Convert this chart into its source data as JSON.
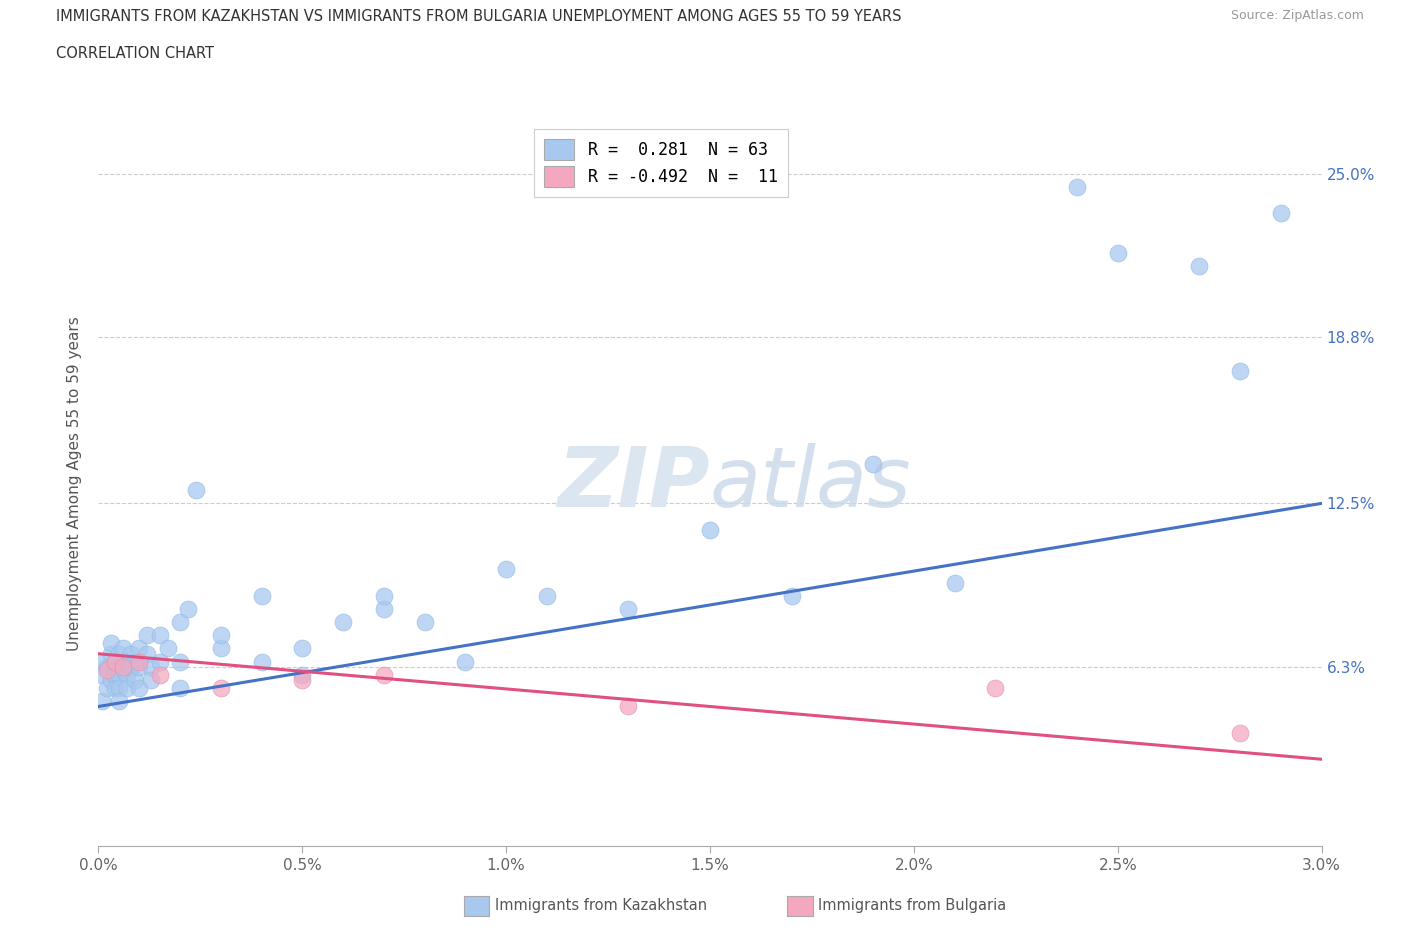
{
  "title_line1": "IMMIGRANTS FROM KAZAKHSTAN VS IMMIGRANTS FROM BULGARIA UNEMPLOYMENT AMONG AGES 55 TO 59 YEARS",
  "title_line2": "CORRELATION CHART",
  "source_text": "Source: ZipAtlas.com",
  "ylabel": "Unemployment Among Ages 55 to 59 years",
  "xlim": [
    0.0,
    0.03
  ],
  "ylim": [
    -0.005,
    0.27
  ],
  "xtick_labels": [
    "0.0%",
    "0.5%",
    "1.0%",
    "1.5%",
    "2.0%",
    "2.5%",
    "3.0%"
  ],
  "xtick_vals": [
    0.0,
    0.005,
    0.01,
    0.015,
    0.02,
    0.025,
    0.03
  ],
  "ytick_labels": [
    "6.3%",
    "12.5%",
    "18.8%",
    "25.0%"
  ],
  "ytick_vals": [
    0.063,
    0.125,
    0.188,
    0.25
  ],
  "legend_kaz_r": "0.281",
  "legend_kaz_n": "63",
  "legend_bul_r": "-0.492",
  "legend_bul_n": "11",
  "kaz_color": "#a8c8f0",
  "bul_color": "#f4a8c0",
  "kaz_line_color": "#4472c4",
  "bul_line_color": "#e05080",
  "watermark_color": "#dce6f0",
  "kaz_scatter_x": [
    0.0001,
    0.0001,
    0.0001,
    0.0002,
    0.0002,
    0.0003,
    0.0003,
    0.0003,
    0.0004,
    0.0004,
    0.0004,
    0.0005,
    0.0005,
    0.0005,
    0.0005,
    0.0006,
    0.0006,
    0.0006,
    0.0007,
    0.0007,
    0.0007,
    0.0008,
    0.0008,
    0.0009,
    0.0009,
    0.001,
    0.001,
    0.001,
    0.0012,
    0.0012,
    0.0013,
    0.0013,
    0.0015,
    0.0015,
    0.0017,
    0.002,
    0.002,
    0.002,
    0.0022,
    0.0024,
    0.003,
    0.003,
    0.004,
    0.004,
    0.005,
    0.005,
    0.006,
    0.007,
    0.007,
    0.008,
    0.009,
    0.01,
    0.011,
    0.013,
    0.015,
    0.017,
    0.019,
    0.021,
    0.024,
    0.025,
    0.027,
    0.028,
    0.029
  ],
  "kaz_scatter_y": [
    0.05,
    0.06,
    0.065,
    0.055,
    0.063,
    0.058,
    0.068,
    0.072,
    0.06,
    0.065,
    0.055,
    0.06,
    0.068,
    0.055,
    0.05,
    0.062,
    0.065,
    0.07,
    0.06,
    0.065,
    0.055,
    0.063,
    0.068,
    0.058,
    0.065,
    0.063,
    0.07,
    0.055,
    0.068,
    0.075,
    0.063,
    0.058,
    0.065,
    0.075,
    0.07,
    0.065,
    0.08,
    0.055,
    0.085,
    0.13,
    0.07,
    0.075,
    0.09,
    0.065,
    0.07,
    0.06,
    0.08,
    0.085,
    0.09,
    0.08,
    0.065,
    0.1,
    0.09,
    0.085,
    0.115,
    0.09,
    0.14,
    0.095,
    0.245,
    0.22,
    0.215,
    0.175,
    0.235
  ],
  "bul_scatter_x": [
    0.0002,
    0.0004,
    0.0006,
    0.001,
    0.0015,
    0.003,
    0.005,
    0.007,
    0.013,
    0.022,
    0.028
  ],
  "bul_scatter_y": [
    0.062,
    0.065,
    0.063,
    0.065,
    0.06,
    0.055,
    0.058,
    0.06,
    0.048,
    0.055,
    0.038
  ],
  "kaz_trend_x": [
    0.0,
    0.03
  ],
  "kaz_trend_y": [
    0.048,
    0.125
  ],
  "bul_trend_x": [
    0.0,
    0.03
  ],
  "bul_trend_y": [
    0.068,
    0.028
  ]
}
